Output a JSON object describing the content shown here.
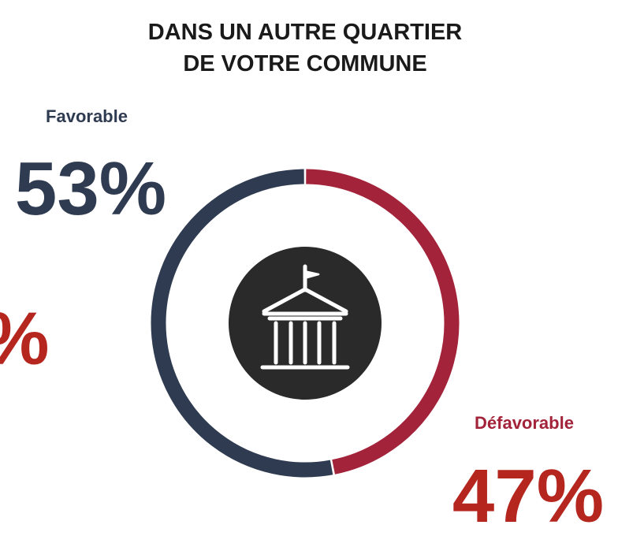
{
  "chart_data": {
    "type": "donut",
    "title": [
      "DANS UN AUTRE QUARTIER",
      "DE VOTRE COMMUNE"
    ],
    "categories": [
      "Favorable",
      "Défavorable"
    ],
    "values": [
      53,
      47
    ],
    "value_labels": [
      "53%",
      "47%"
    ],
    "colors": [
      "#2f3b50",
      "#a3233a"
    ],
    "label_colors": [
      "#2f3b50",
      "#b5261f"
    ],
    "partial_label": "%"
  }
}
